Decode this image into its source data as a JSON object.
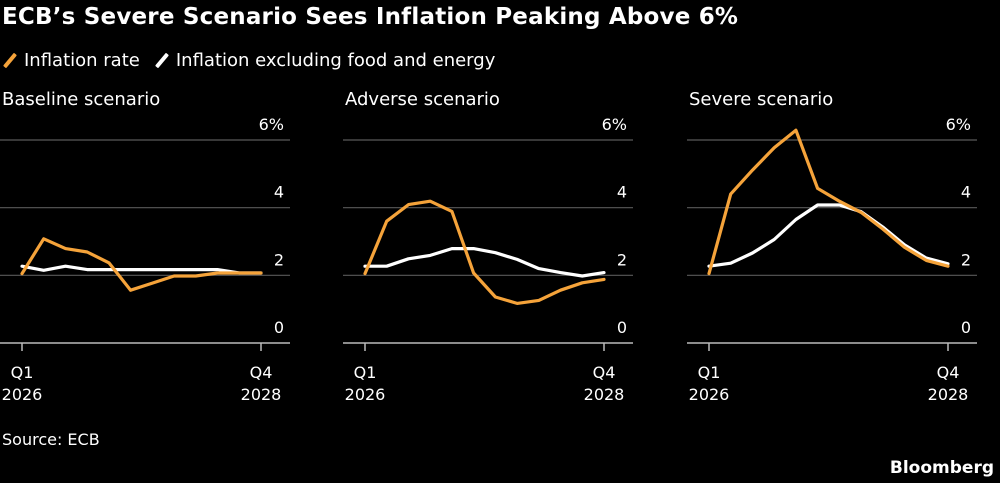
{
  "title": "ECB’s Severe Scenario Sees Inflation Peaking Above 6%",
  "legend": [
    {
      "label": "Inflation rate",
      "color": "#f5a33a"
    },
    {
      "label": "Inflation excluding food and energy",
      "color": "#ffffff"
    }
  ],
  "source": "Source: ECB",
  "brand": "Bloomberg",
  "chart_data": [
    {
      "type": "line",
      "title": "Baseline scenario",
      "x": [
        "Q1 2026",
        "Q2 2026",
        "Q3 2026",
        "Q4 2026",
        "Q1 2027",
        "Q2 2027",
        "Q3 2027",
        "Q4 2027",
        "Q1 2028",
        "Q2 2028",
        "Q3 2028",
        "Q4 2028"
      ],
      "x_tick_labels": [
        {
          "top": "Q1",
          "bottom": "2026"
        },
        {
          "top": "Q4",
          "bottom": "2028"
        }
      ],
      "y_tick_labels": [
        "0",
        "2",
        "4",
        "6%"
      ],
      "ylim": [
        0,
        6
      ],
      "grid": true,
      "series": [
        {
          "name": "Inflation rate",
          "color": "#f5a33a",
          "values": [
            2.05,
            3.08,
            2.79,
            2.69,
            2.37,
            1.56,
            1.77,
            1.98,
            1.98,
            2.07,
            2.07,
            2.07
          ]
        },
        {
          "name": "Inflation excluding food and energy",
          "color": "#ffffff",
          "values": [
            2.27,
            2.15,
            2.27,
            2.17,
            2.17,
            2.17,
            2.17,
            2.17,
            2.17,
            2.17,
            2.07,
            2.07
          ]
        }
      ]
    },
    {
      "type": "line",
      "title": "Adverse scenario",
      "x": [
        "Q1 2026",
        "Q2 2026",
        "Q3 2026",
        "Q4 2026",
        "Q1 2027",
        "Q2 2027",
        "Q3 2027",
        "Q4 2027",
        "Q1 2028",
        "Q2 2028",
        "Q3 2028",
        "Q4 2028"
      ],
      "x_tick_labels": [
        {
          "top": "Q1",
          "bottom": "2026"
        },
        {
          "top": "Q4",
          "bottom": "2028"
        }
      ],
      "y_tick_labels": [
        "0",
        "2",
        "4",
        "6%"
      ],
      "ylim": [
        0,
        6
      ],
      "grid": true,
      "series": [
        {
          "name": "Inflation rate",
          "color": "#f5a33a",
          "values": [
            2.05,
            3.6,
            4.09,
            4.19,
            3.89,
            2.07,
            1.36,
            1.17,
            1.26,
            1.56,
            1.78,
            1.88
          ]
        },
        {
          "name": "Inflation excluding food and energy",
          "color": "#ffffff",
          "values": [
            2.27,
            2.27,
            2.49,
            2.59,
            2.79,
            2.79,
            2.67,
            2.47,
            2.2,
            2.08,
            1.98,
            2.08
          ]
        }
      ]
    },
    {
      "type": "line",
      "title": "Severe scenario",
      "x": [
        "Q1 2026",
        "Q2 2026",
        "Q3 2026",
        "Q4 2026",
        "Q1 2027",
        "Q2 2027",
        "Q3 2027",
        "Q4 2027",
        "Q1 2028",
        "Q2 2028",
        "Q3 2028",
        "Q4 2028"
      ],
      "x_tick_labels": [
        {
          "top": "Q1",
          "bottom": "2026"
        },
        {
          "top": "Q4",
          "bottom": "2028"
        }
      ],
      "y_tick_labels": [
        "0",
        "2",
        "4",
        "6%"
      ],
      "ylim": [
        0,
        6
      ],
      "grid": true,
      "series": [
        {
          "name": "Inflation rate",
          "color": "#f5a33a",
          "values": [
            2.05,
            4.4,
            5.11,
            5.77,
            6.29,
            4.57,
            4.19,
            3.86,
            3.37,
            2.83,
            2.44,
            2.27
          ]
        },
        {
          "name": "Inflation excluding food and energy",
          "color": "#ffffff",
          "values": [
            2.27,
            2.36,
            2.66,
            3.06,
            3.65,
            4.08,
            4.08,
            3.88,
            3.43,
            2.9,
            2.51,
            2.34
          ]
        }
      ]
    }
  ]
}
